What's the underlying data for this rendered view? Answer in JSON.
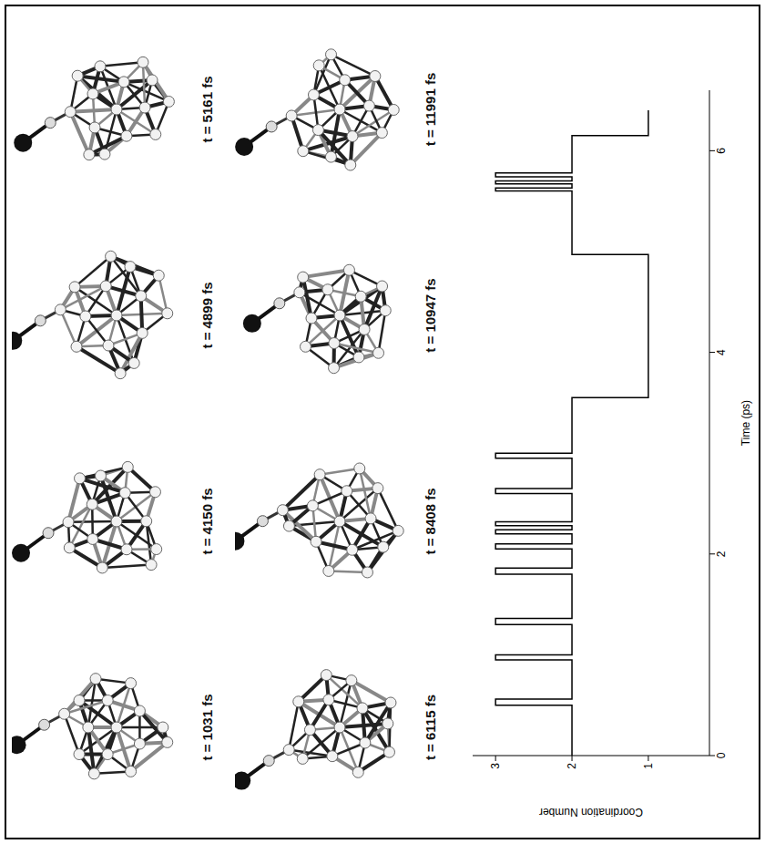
{
  "chart_data": {
    "type": "line",
    "x_label": "Time (ps)",
    "y_label": "Coordination Number",
    "x": [
      0,
      0.5,
      0.56,
      0.95,
      1.0,
      1.3,
      1.36,
      1.8,
      1.86,
      2.05,
      2.1,
      2.2,
      2.24,
      2.28,
      2.32,
      2.6,
      2.65,
      2.95,
      3.0,
      3.55,
      4.97,
      5.6,
      5.63,
      5.67,
      5.7,
      5.74,
      5.78,
      6.15,
      6.4
    ],
    "values": [
      2,
      3,
      2,
      3,
      2,
      3,
      2,
      3,
      2,
      3,
      2,
      3,
      2,
      3,
      2,
      3,
      2,
      3,
      2,
      1,
      2,
      3,
      2,
      3,
      2,
      3,
      2,
      1,
      1
    ],
    "line_style": "step",
    "color": "#000000",
    "xlim": [
      0,
      6.6
    ],
    "xticks": [
      0,
      2,
      4,
      6
    ],
    "ylim": [
      0.2,
      3.3
    ],
    "yticks": [
      1,
      2,
      3
    ],
    "grid": false
  },
  "snapshots": [
    "t = 1031 fs",
    "t = 4150 fs",
    "t = 4899 fs",
    "t = 5161 fs",
    "t = 6115 fs",
    "t = 8408 fs",
    "t = 10947 fs",
    "t = 11991 fs"
  ]
}
